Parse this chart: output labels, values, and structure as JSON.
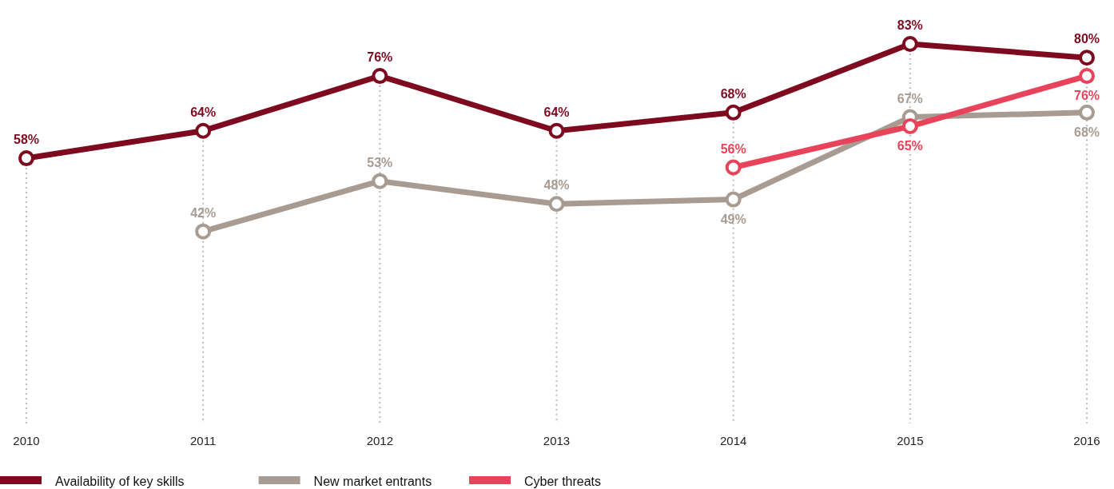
{
  "chart_data": {
    "type": "line",
    "categories": [
      "2010",
      "2011",
      "2012",
      "2013",
      "2014",
      "2015",
      "2016"
    ],
    "series": [
      {
        "name": "Availability of key skills",
        "color": "#7d0a1e",
        "values": [
          58,
          64,
          76,
          64,
          68,
          83,
          80
        ],
        "value_labels": [
          "58%",
          "64%",
          "76%",
          "64%",
          "68%",
          "83%",
          "80%"
        ]
      },
      {
        "name": "New market entrants",
        "color": "#a89b91",
        "values": [
          null,
          42,
          53,
          48,
          49,
          67,
          68
        ],
        "value_labels": [
          null,
          "42%",
          "53%",
          "48%",
          "49%",
          "67%",
          "68%"
        ]
      },
      {
        "name": "Cyber threats",
        "color": "#e8435a",
        "values": [
          null,
          null,
          null,
          null,
          56,
          65,
          76
        ],
        "value_labels": [
          null,
          null,
          null,
          null,
          "56%",
          "65%",
          "76%"
        ]
      }
    ],
    "marker": "circle",
    "grid": "x",
    "legend": "bottom left"
  }
}
